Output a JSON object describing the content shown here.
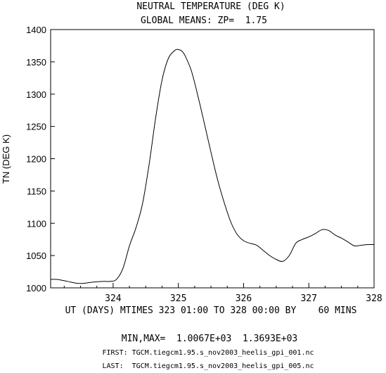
{
  "chart_data": {
    "type": "line",
    "title": "NEUTRAL TEMPERATURE (DEG K)",
    "subtitle": "GLOBAL MEANS: ZP=  1.75",
    "ylabel": "TN (DEG K)",
    "xlabel": "UT (DAYS) MTIMES 323 01:00 TO 328 00:00 BY    60 MINS",
    "xlim": [
      323.0417,
      328.0
    ],
    "ylim": [
      1000,
      1400
    ],
    "x_ticks": [
      324,
      325,
      326,
      327,
      328
    ],
    "y_ticks": [
      1000,
      1050,
      1100,
      1150,
      1200,
      1250,
      1300,
      1350,
      1400
    ],
    "grid": false,
    "line_color": "#000000",
    "series": [
      {
        "x": [
          323.0417,
          323.15,
          323.3,
          323.45,
          323.55,
          323.7,
          323.85,
          323.95,
          324.05,
          324.15,
          324.25,
          324.35,
          324.45,
          324.55,
          324.65,
          324.75,
          324.85,
          324.95,
          325.0,
          325.05,
          325.1,
          325.2,
          325.3,
          325.4,
          325.5,
          325.6,
          325.7,
          325.8,
          325.9,
          326.0,
          326.1,
          326.2,
          326.3,
          326.4,
          326.5,
          326.6,
          326.7,
          326.8,
          326.9,
          327.0,
          327.1,
          327.2,
          327.3,
          327.4,
          327.5,
          327.6,
          327.7,
          327.8,
          327.9,
          328.0
        ],
        "y": [
          1013,
          1013,
          1010,
          1007,
          1007,
          1009,
          1010,
          1010,
          1013,
          1030,
          1065,
          1093,
          1130,
          1190,
          1262,
          1322,
          1356,
          1368,
          1369,
          1367,
          1360,
          1336,
          1297,
          1254,
          1210,
          1168,
          1133,
          1103,
          1083,
          1073,
          1069,
          1066,
          1058,
          1050,
          1044,
          1041,
          1050,
          1069,
          1075,
          1079,
          1084,
          1090,
          1089,
          1082,
          1077,
          1071,
          1065,
          1066,
          1067,
          1067
        ]
      }
    ]
  },
  "footer": {
    "minmax": "MIN,MAX=  1.0067E+03  1.3693E+03",
    "first": "FIRST: TGCM.tiegcm1.95.s_nov2003_heelis_gpi_001.nc",
    "last": "LAST:  TGCM.tiegcm1.95.s_nov2003_heelis_gpi_005.nc"
  }
}
